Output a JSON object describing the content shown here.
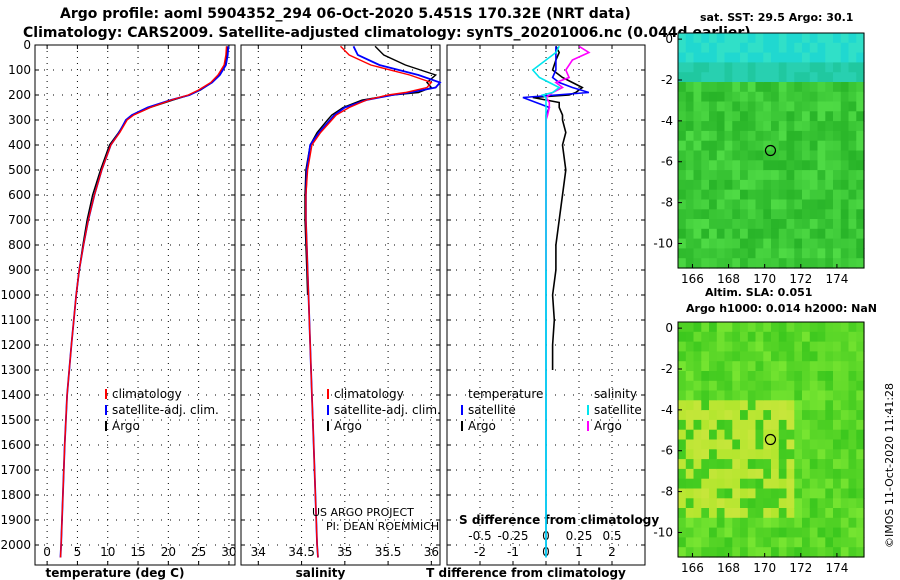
{
  "title_line1": "Argo profile: aoml 5904352_294 06-Oct-2020 5.451S 170.32E (NRT data)",
  "title_line2": "Climatology: CARS2009. Satellite-adjusted climatology: synTS_20201006.nc (0.044d earlier)",
  "credit": "©IMOS 11-Oct-2020 11:41:28",
  "colors": {
    "climatology": "#ff0000",
    "satellite": "#0000ff",
    "argo": "#000000",
    "sal_satellite": "#00e5ee",
    "sal_argo": "#ff00ff"
  },
  "depth_ticks": [
    0,
    100,
    200,
    300,
    400,
    500,
    600,
    700,
    800,
    900,
    1000,
    1100,
    1200,
    1300,
    1400,
    1500,
    1600,
    1700,
    1800,
    1900,
    2000
  ],
  "chart_data": [
    {
      "type": "line",
      "id": "temperature",
      "xlabel": "temperature (deg C)",
      "xlim": [
        -2,
        31
      ],
      "ylim": [
        2080,
        0
      ],
      "xticks": [
        0,
        5,
        10,
        15,
        20,
        25,
        30
      ],
      "legend": [
        "climatology",
        "satellite-adj. clim.",
        "Argo"
      ],
      "depth": [
        5,
        40,
        80,
        120,
        150,
        180,
        200,
        220,
        250,
        280,
        300,
        350,
        400,
        500,
        600,
        700,
        800,
        900,
        1000,
        1200,
        1400,
        1600,
        1800,
        2000,
        2050
      ],
      "series": [
        {
          "name": "climatology",
          "values": [
            29.6,
            29.5,
            29.2,
            28.2,
            27.0,
            25.0,
            23.3,
            20.5,
            17.0,
            14.3,
            13.2,
            12.0,
            10.5,
            9.0,
            7.8,
            6.8,
            6.0,
            5.3,
            4.8,
            4.0,
            3.3,
            2.9,
            2.6,
            2.3,
            2.2
          ]
        },
        {
          "name": "satellite-adj. clim.",
          "values": [
            29.9,
            29.8,
            29.5,
            28.5,
            27.2,
            25.2,
            23.5,
            20.4,
            16.6,
            14.0,
            13.0,
            11.9,
            10.5,
            9.0,
            7.8,
            6.8,
            6.0,
            5.3,
            4.8,
            4.0,
            3.3,
            2.9,
            2.6,
            2.3,
            2.2
          ]
        },
        {
          "name": "Argo",
          "values": [
            29.7,
            29.6,
            29.4,
            28.4,
            27.2,
            25.3,
            23.5,
            20.8,
            17.0,
            14.2,
            13.1,
            11.8,
            10.3,
            8.8,
            7.5,
            6.6,
            5.9,
            5.3,
            4.8
          ]
        }
      ]
    },
    {
      "type": "line",
      "id": "salinity",
      "xlabel": "salinity",
      "xlim": [
        33.8,
        36.1
      ],
      "ylim": [
        2080,
        0
      ],
      "xticks": [
        34,
        34.5,
        35,
        35.5,
        36
      ],
      "legend": [
        "climatology",
        "satellite-adj. clim.",
        "Argo"
      ],
      "annotation": [
        "US ARGO PROJECT",
        "PI: DEAN ROEMMICH"
      ],
      "depth": [
        5,
        40,
        80,
        120,
        150,
        170,
        190,
        200,
        220,
        250,
        280,
        300,
        350,
        400,
        500,
        600,
        700,
        800,
        900,
        1000,
        1200,
        1400,
        1600,
        1800,
        2000,
        2050
      ],
      "series": [
        {
          "name": "climatology",
          "values": [
            34.95,
            35.05,
            35.3,
            35.75,
            36.0,
            35.95,
            35.7,
            35.5,
            35.25,
            35.05,
            34.9,
            34.85,
            34.72,
            34.62,
            34.57,
            34.55,
            34.55,
            34.56,
            34.57,
            34.58,
            34.6,
            34.62,
            34.64,
            34.66,
            34.68,
            34.69
          ]
        },
        {
          "name": "satellite-adj. clim.",
          "values": [
            35.1,
            35.15,
            35.4,
            35.85,
            36.1,
            36.05,
            35.75,
            35.55,
            35.25,
            35.0,
            34.88,
            34.83,
            34.7,
            34.6,
            34.56,
            34.55,
            34.55,
            34.56,
            34.57,
            34.58,
            34.6,
            34.62,
            34.64,
            34.66,
            34.68,
            34.69
          ]
        },
        {
          "name": "Argo",
          "values": [
            35.35,
            35.45,
            35.7,
            36.05,
            35.95,
            36.0,
            35.85,
            35.55,
            35.2,
            34.98,
            34.85,
            34.8,
            34.68,
            34.6,
            34.55,
            34.54,
            34.54,
            34.55,
            34.56,
            34.57
          ]
        }
      ]
    },
    {
      "type": "line",
      "id": "difference",
      "xlabel": "T difference from climatology",
      "xlabel_top": "S difference from climatology",
      "xlim": [
        -3,
        3
      ],
      "ylim": [
        2080,
        0
      ],
      "xticks": [
        -2,
        -1,
        0,
        1,
        2
      ],
      "xticks_top": [
        -0.5,
        -0.25,
        0,
        0.25,
        0.5
      ],
      "legend_left": [
        "temperature",
        "satellite",
        "Argo"
      ],
      "legend_right": [
        "salinity",
        "satellite",
        "Argo"
      ],
      "depth": [
        5,
        30,
        60,
        100,
        130,
        150,
        170,
        190,
        200,
        210,
        230,
        250,
        280,
        300,
        350,
        400,
        500,
        600,
        700,
        800,
        900,
        1000,
        1100,
        1200,
        1300,
        1400,
        1600,
        1800,
        2000,
        2050
      ],
      "series": [
        {
          "name": "T satellite",
          "values": [
            0.3,
            0.3,
            0.3,
            0.3,
            0.2,
            0.4,
            0.8,
            1.3,
            0.3,
            -0.7,
            -0.3,
            0.1,
            0.0,
            0.0,
            0.0,
            0.0,
            0.0,
            0.0,
            0.0,
            0.0,
            0.0,
            0.0,
            0.0,
            0.0,
            0.0,
            0.0,
            0.0,
            0.0,
            0.0,
            0.0
          ]
        },
        {
          "name": "T Argo",
          "values": [
            0.3,
            0.4,
            0.3,
            0.2,
            0.5,
            0.8,
            1.1,
            0.9,
            0.7,
            -0.4,
            0.4,
            0.4,
            0.5,
            0.5,
            0.6,
            0.5,
            0.6,
            0.5,
            0.4,
            0.3,
            0.3,
            0.2,
            0.25,
            0.2,
            0.2
          ]
        },
        {
          "name": "S satellite",
          "values": [
            0.4,
            0.3,
            0.0,
            -0.4,
            -0.2,
            0.1,
            0.4,
            0.2,
            -0.1,
            0.0,
            0.0,
            0.0,
            0.0,
            0.0,
            0.0,
            0.0,
            0.0,
            0.0,
            0.0,
            0.0,
            0.0,
            0.0,
            0.0,
            0.0,
            0.0,
            0.0,
            0.0,
            0.0,
            0.0,
            0.0
          ]
        },
        {
          "name": "S Argo",
          "values": [
            1.0,
            1.3,
            0.8,
            0.6,
            0.7,
            0.3,
            0.5,
            0.2,
            0.1,
            0.0,
            0.1,
            0.1,
            0.05,
            0.0,
            0.0,
            0.0,
            0.0,
            0.0,
            0.0,
            0.0,
            0.0
          ]
        }
      ]
    },
    {
      "type": "heatmap",
      "id": "sst_map",
      "title": "sat. SST: 29.5 Argo: 30.1",
      "xlim": [
        165.2,
        175.5
      ],
      "ylim": [
        -11.2,
        0.3
      ],
      "xticks": [
        166,
        168,
        170,
        172,
        174
      ],
      "yticks": [
        0,
        -2,
        -4,
        -6,
        -8,
        -10
      ],
      "marker": [
        170.32,
        -5.451
      ]
    },
    {
      "type": "heatmap",
      "id": "sla_map",
      "title_line1": "Altim. SLA: 0.051",
      "title_line2": "Argo h1000: 0.014 h2000: NaN",
      "xlim": [
        165.2,
        175.5
      ],
      "ylim": [
        -11.2,
        0.3
      ],
      "xticks": [
        166,
        168,
        170,
        172,
        174
      ],
      "yticks": [
        0,
        -2,
        -4,
        -6,
        -8,
        -10
      ],
      "marker": [
        170.32,
        -5.451
      ]
    }
  ]
}
